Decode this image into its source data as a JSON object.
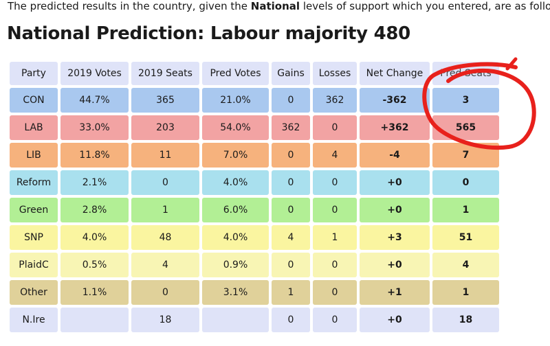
{
  "intro": {
    "before": "The predicted results in the country, given the ",
    "bold": "National",
    "after": " levels of support which you entered, are as follows."
  },
  "heading": "National Prediction: Labour majority 480",
  "table": {
    "headers": [
      "Party",
      "2019 Votes",
      "2019 Seats",
      "Pred Votes",
      "Gains",
      "Losses",
      "Net Change",
      "Pred Seats"
    ],
    "rows": [
      {
        "party": "CON",
        "votes2019": "44.7%",
        "seats2019": "365",
        "predVotes": "21.0%",
        "gains": "0",
        "losses": "362",
        "net": "-362",
        "predSeats": "3"
      },
      {
        "party": "LAB",
        "votes2019": "33.0%",
        "seats2019": "203",
        "predVotes": "54.0%",
        "gains": "362",
        "losses": "0",
        "net": "+362",
        "predSeats": "565"
      },
      {
        "party": "LIB",
        "votes2019": "11.8%",
        "seats2019": "11",
        "predVotes": "7.0%",
        "gains": "0",
        "losses": "4",
        "net": "-4",
        "predSeats": "7"
      },
      {
        "party": "Reform",
        "votes2019": "2.1%",
        "seats2019": "0",
        "predVotes": "4.0%",
        "gains": "0",
        "losses": "0",
        "net": "+0",
        "predSeats": "0"
      },
      {
        "party": "Green",
        "votes2019": "2.8%",
        "seats2019": "1",
        "predVotes": "6.0%",
        "gains": "0",
        "losses": "0",
        "net": "+0",
        "predSeats": "1"
      },
      {
        "party": "SNP",
        "votes2019": "4.0%",
        "seats2019": "48",
        "predVotes": "4.0%",
        "gains": "4",
        "losses": "1",
        "net": "+3",
        "predSeats": "51"
      },
      {
        "party": "PlaidC",
        "votes2019": "0.5%",
        "seats2019": "4",
        "predVotes": "0.9%",
        "gains": "0",
        "losses": "0",
        "net": "+0",
        "predSeats": "4"
      },
      {
        "party": "Other",
        "votes2019": "1.1%",
        "seats2019": "0",
        "predVotes": "3.1%",
        "gains": "1",
        "losses": "0",
        "net": "+1",
        "predSeats": "1"
      },
      {
        "party": "N.Ire",
        "votes2019": "",
        "seats2019": "18",
        "predVotes": "",
        "gains": "0",
        "losses": "0",
        "net": "+0",
        "predSeats": "18"
      }
    ]
  },
  "colors": {
    "CON": "#a9c8ef",
    "LAB": "#f2a3a3",
    "LIB": "#f6b27d",
    "Reform": "#a9e0ee",
    "Green": "#b2ef95",
    "SNP": "#faf5a0",
    "PlaidC": "#f8f5b4",
    "Other": "#e0d19a",
    "N.Ire": "#dfe3f8",
    "header": "#dfe3f8",
    "annotation": "#e8211c"
  }
}
